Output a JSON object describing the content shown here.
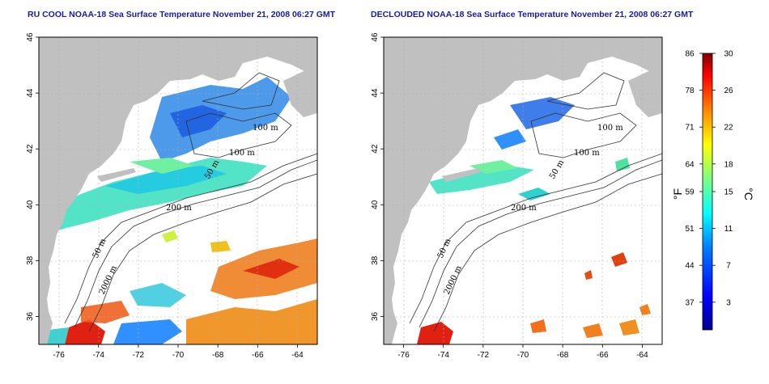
{
  "panels": [
    {
      "id": "left",
      "title": "RU COOL NOAA-18 Sea Surface Temperature November 21, 2008 06:27 GMT",
      "contour_labels": [
        "100 m",
        "100 m",
        "50 m",
        "200 m",
        "50 m",
        "2000 m"
      ]
    },
    {
      "id": "right",
      "title": "DECLOUDED NOAA-18 Sea Surface Temperature November 21, 2008 06:27 GMT",
      "contour_labels": [
        "100 m",
        "100 m",
        "50 m",
        "200 m",
        "50 m",
        "2000 m"
      ]
    }
  ],
  "map_extent": {
    "lon_range": [
      -77,
      -63
    ],
    "lat_range": [
      35,
      46
    ]
  },
  "x_ticks": [
    "-76",
    "-74",
    "-72",
    "-70",
    "-68",
    "-66",
    "-64"
  ],
  "y_ticks": [
    "36",
    "38",
    "40",
    "42",
    "44",
    "46"
  ],
  "colorbar": {
    "f_ticks": [
      "86",
      "78",
      "71",
      "64",
      "59",
      "51",
      "44",
      "37"
    ],
    "c_ticks": [
      "30",
      "26",
      "22",
      "18",
      "15",
      "11",
      "7",
      "3"
    ],
    "f_unit": "°F",
    "c_unit": "°C",
    "range_c": [
      0,
      30
    ],
    "colormap": [
      "#00008f",
      "#0000ff",
      "#0080ff",
      "#00ffff",
      "#80ff80",
      "#ffff00",
      "#ff8000",
      "#ff0000",
      "#800000"
    ]
  },
  "colors": {
    "land": "#c0c0c0",
    "ocean_no_data": "#ffffff",
    "title": "#1a1aa0",
    "contour": "#303030",
    "grid": "#b0b0b0"
  }
}
